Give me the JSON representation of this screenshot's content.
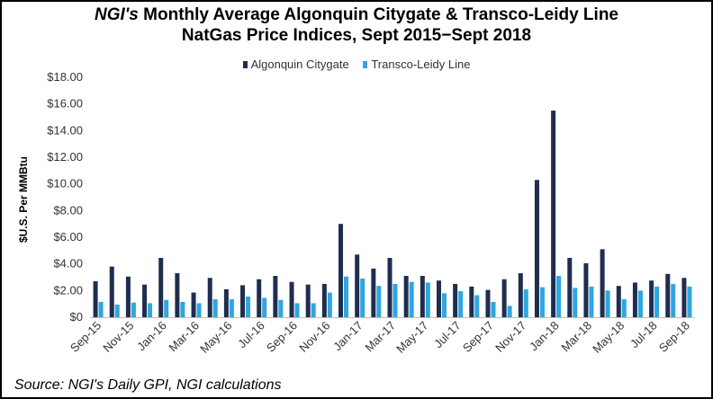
{
  "chart_data": {
    "type": "bar",
    "title_italic": "NGI's",
    "title_rest_line1": " Monthly Average Algonquin Citygate & Transco-Leidy Line",
    "title_line2": "NatGas Price Indices, Sept 2015−Sept 2018",
    "ylabel": "$U.S. Per MMBtu",
    "xlabel": "",
    "ylim": [
      0,
      18
    ],
    "ytick_step": 2,
    "ytick_labels": [
      "$0",
      "$2.00",
      "$4.00",
      "$6.00",
      "$8.00",
      "$10.00",
      "$12.00",
      "$14.00",
      "$16.00",
      "$18.00"
    ],
    "legend": [
      "Algonquin Citygate",
      "Transco-Leidy Line"
    ],
    "legend_position": "top",
    "grid": false,
    "categories": [
      "Sep-15",
      "Oct-15",
      "Nov-15",
      "Dec-15",
      "Jan-16",
      "Feb-16",
      "Mar-16",
      "Apr-16",
      "May-16",
      "Jun-16",
      "Jul-16",
      "Aug-16",
      "Sep-16",
      "Oct-16",
      "Nov-16",
      "Dec-16",
      "Jan-17",
      "Feb-17",
      "Mar-17",
      "Apr-17",
      "May-17",
      "Jun-17",
      "Jul-17",
      "Aug-17",
      "Sep-17",
      "Oct-17",
      "Nov-17",
      "Dec-17",
      "Jan-18",
      "Feb-18",
      "Mar-18",
      "Apr-18",
      "May-18",
      "Jun-18",
      "Jul-18",
      "Aug-18",
      "Sep-18"
    ],
    "x_tick_labels": [
      "Sep-15",
      "Nov-15",
      "Jan-16",
      "Mar-16",
      "May-16",
      "Jul-16",
      "Sep-16",
      "Nov-16",
      "Jan-17",
      "Mar-17",
      "May-17",
      "Jul-17",
      "Sep-17",
      "Nov-17",
      "Jan-18",
      "Mar-18",
      "May-18",
      "Jul-18",
      "Sep-18"
    ],
    "series": [
      {
        "name": "Algonquin Citygate",
        "color": "#1f2d4f",
        "values": [
          2.7,
          3.8,
          3.05,
          2.45,
          4.45,
          3.3,
          1.85,
          2.95,
          2.1,
          2.4,
          2.85,
          3.1,
          2.65,
          2.45,
          2.5,
          7.0,
          4.7,
          3.65,
          4.45,
          3.1,
          3.1,
          2.75,
          2.5,
          2.3,
          2.05,
          2.85,
          3.3,
          10.3,
          15.5,
          4.45,
          4.05,
          5.1,
          2.35,
          2.6,
          2.75,
          3.25,
          2.95
        ]
      },
      {
        "name": "Transco-Leidy Line",
        "color": "#2fa6de",
        "values": [
          1.15,
          0.95,
          1.1,
          1.05,
          1.3,
          1.15,
          1.05,
          1.35,
          1.35,
          1.55,
          1.45,
          1.3,
          1.05,
          1.05,
          1.85,
          3.05,
          2.9,
          2.35,
          2.5,
          2.65,
          2.6,
          1.8,
          1.95,
          1.65,
          1.15,
          0.85,
          2.1,
          2.25,
          3.1,
          2.2,
          2.3,
          2.0,
          1.35,
          2.0,
          2.3,
          2.5,
          2.3
        ]
      }
    ]
  },
  "source_note": "Source: NGI's Daily GPI, NGI calculations"
}
